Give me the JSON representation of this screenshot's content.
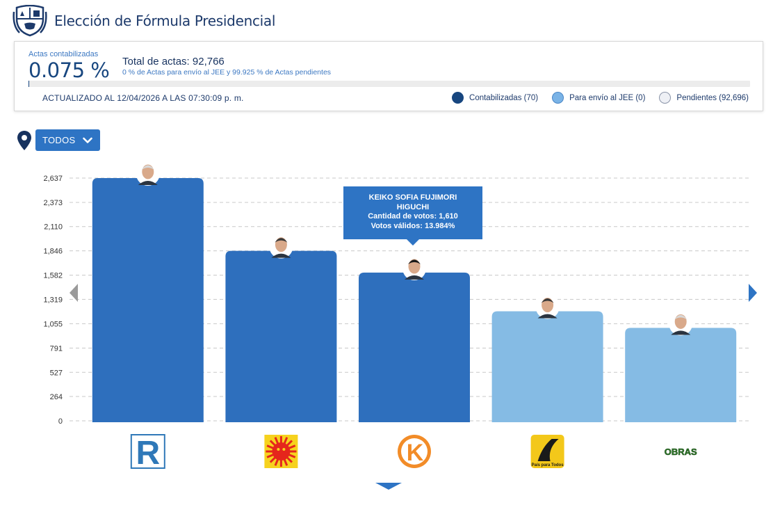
{
  "header": {
    "title": "Elección de Fórmula Presidencial",
    "emblem_icon": "peru-coat-of-arms-icon"
  },
  "summary": {
    "actas_label": "Actas contabilizadas",
    "actas_percent": "0.075 %",
    "actas_progress_percent": 0.075,
    "total_actas": "Total de actas: 92,766",
    "actas_subtitle": "0 % de Actas para envío al JEE y 99.925 % de Actas pendientes",
    "updated": "ACTUALIZADO AL 12/04/2026 A LAS 07:30:09 p. m."
  },
  "legend": [
    {
      "label": "Contabilizadas (70)",
      "color": "#17467f"
    },
    {
      "label": "Para envío al JEE (0)",
      "color": "#7ab3e6"
    },
    {
      "label": "Pendientes (92,696)",
      "color": "#eef0f5"
    }
  ],
  "filter": {
    "label": "TODOS",
    "location_icon": "location-pin-icon"
  },
  "tooltip": {
    "name_line1": "KEIKO SOFIA FUJIMORI",
    "name_line2": "HIGUCHI",
    "votes": "Cantidad de votos: 1,610",
    "valid": "Votos válidos: 13.984%"
  },
  "chart_data": {
    "type": "bar",
    "title": "Elección de Fórmula Presidencial",
    "xlabel": "",
    "ylabel": "",
    "ylim": [
      0,
      2637
    ],
    "yticks": [
      "0",
      "264",
      "527",
      "791",
      "1,055",
      "1,319",
      "1,582",
      "1,846",
      "2,110",
      "2,373",
      "2,637"
    ],
    "ytick_values": [
      0,
      264,
      527,
      791,
      1055,
      1319,
      1582,
      1846,
      2110,
      2373,
      2637
    ],
    "grid": true,
    "categories": [
      "Renovación Popular",
      "Partido Sol",
      "Fuerza Popular",
      "País para Todos",
      "Obras"
    ],
    "values": [
      2637,
      1846,
      1610,
      1190,
      1010
    ],
    "bar_colors": [
      "#2e6fbd",
      "#2e6fbd",
      "#2e6fbd",
      "#85bbe4",
      "#85bbe4"
    ],
    "logo_texts": [
      "R",
      "",
      "K",
      "País para Todos",
      "OBRAS"
    ]
  }
}
